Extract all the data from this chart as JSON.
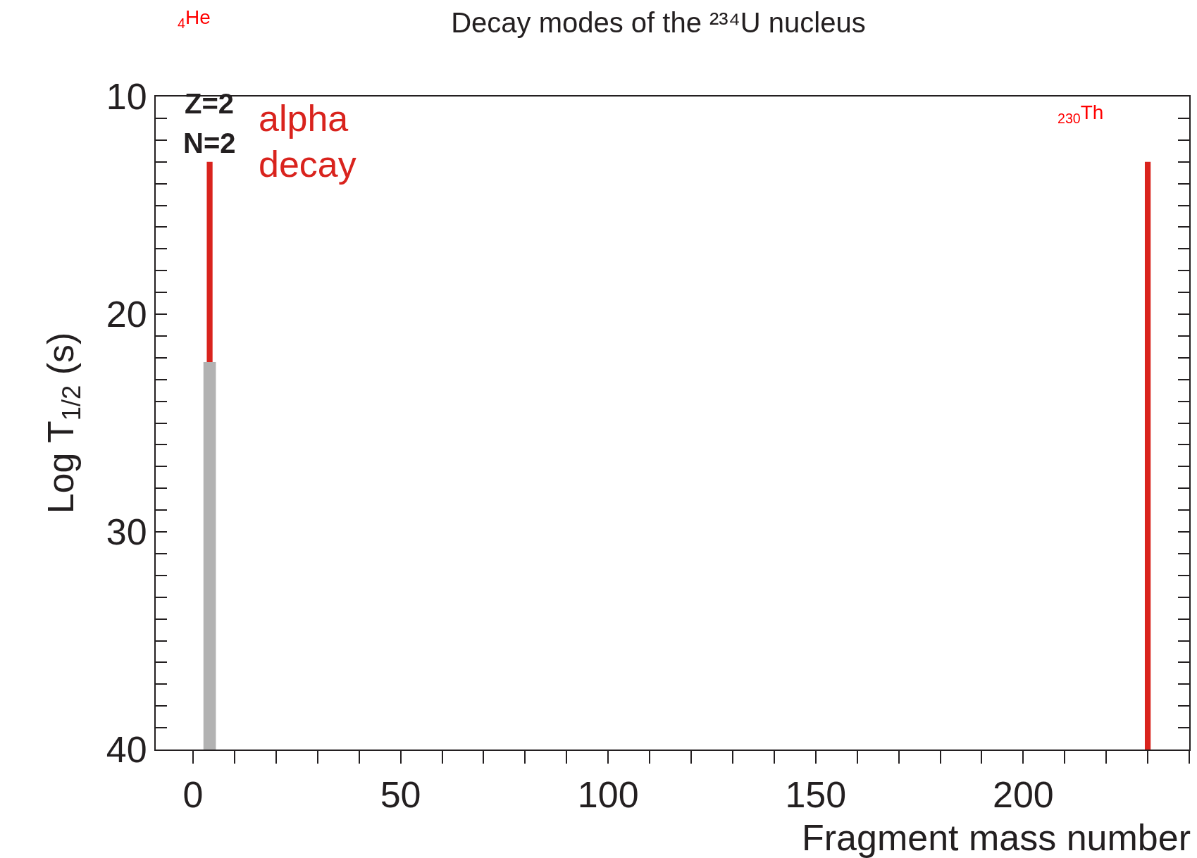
{
  "chart_data": {
    "type": "bar",
    "title": "Decay modes of the ²³⁴U nucleus",
    "xlabel": "Fragment mass number",
    "ylabel": "Log T$_{1/2}$ (s)",
    "x": [
      4,
      230
    ],
    "series": [
      {
        "color": "#d9231d",
        "values": [
          -27,
          -27
        ],
        "base": [
          40,
          40
        ]
      },
      {
        "color": "#b2b2b2",
        "values": [
          -17.8,
          null
        ],
        "base": [
          40,
          null
        ]
      }
    ],
    "xlim": [
      -9,
      240
    ],
    "xticks": [
      0,
      50,
      100,
      150,
      200
    ],
    "ylim": [
      40,
      10
    ],
    "yticks": [
      10,
      20,
      30,
      40
    ],
    "annotations": [
      "$_{4}$He",
      "Z=2",
      "N=2",
      "alpha",
      "decay",
      "$_{230}$Th"
    ],
    "grid": false
  }
}
